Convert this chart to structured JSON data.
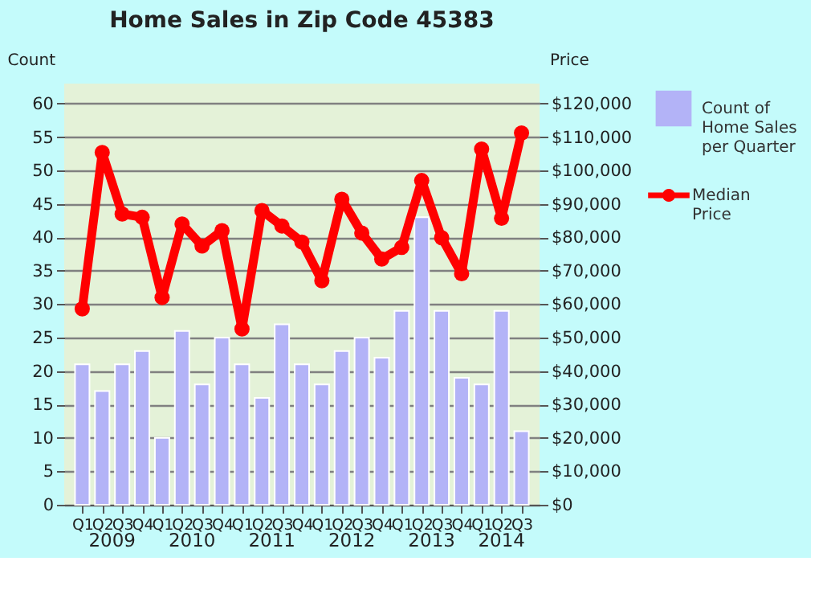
{
  "chart_data": {
    "type": "bar",
    "title": "Home Sales in Zip Code 45383",
    "categories": [
      "Q1",
      "Q2",
      "Q3",
      "Q4",
      "Q1",
      "Q2",
      "Q3",
      "Q4",
      "Q1",
      "Q2",
      "Q3",
      "Q4",
      "Q1",
      "Q2",
      "Q3",
      "Q4",
      "Q1",
      "Q2",
      "Q3",
      "Q4",
      "Q1",
      "Q2",
      "Q3"
    ],
    "annotations": [
      "2009",
      "2010",
      "2011",
      "2012",
      "2013",
      "2014"
    ],
    "ylabel": "Count",
    "y2label": "Price",
    "ylim": [
      0,
      63
    ],
    "yticks": [
      0,
      5,
      10,
      15,
      20,
      25,
      30,
      35,
      40,
      45,
      50,
      55,
      60
    ],
    "y2lim": [
      0,
      126000
    ],
    "y2ticks": [
      {
        "value": 0,
        "label": "$0"
      },
      {
        "value": 10000,
        "label": "$10,000"
      },
      {
        "value": 20000,
        "label": "$20,000"
      },
      {
        "value": 30000,
        "label": "$30,000"
      },
      {
        "value": 40000,
        "label": "$40,000"
      },
      {
        "value": 50000,
        "label": "$50,000"
      },
      {
        "value": 60000,
        "label": "$60,000"
      },
      {
        "value": 70000,
        "label": "$70,000"
      },
      {
        "value": 80000,
        "label": "$80,000"
      },
      {
        "value": 90000,
        "label": "$90,000"
      },
      {
        "value": 100000,
        "label": "$100,000"
      },
      {
        "value": 110000,
        "label": "$110,000"
      },
      {
        "value": 120000,
        "label": "$120,000"
      }
    ],
    "grid": "y",
    "legend": "right",
    "marker": "circle",
    "series": [
      {
        "name": "Count of Home Sales per Quarter",
        "color": "#b3b3f7",
        "values": [
          21,
          17,
          21,
          23,
          10,
          26,
          18,
          25,
          21,
          16,
          27,
          21,
          18,
          23,
          25,
          22,
          29,
          43,
          29,
          19,
          18,
          29,
          11
        ]
      },
      {
        "name": "Median Price",
        "type": "line",
        "axis": "y2",
        "color": "#ff0000",
        "values": [
          58600,
          105400,
          87000,
          86000,
          62000,
          84000,
          77400,
          82000,
          52600,
          88000,
          83400,
          78600,
          67000,
          91400,
          81300,
          73500,
          77000,
          97000,
          79900,
          69100,
          106400,
          85700,
          111200
        ]
      }
    ]
  }
}
